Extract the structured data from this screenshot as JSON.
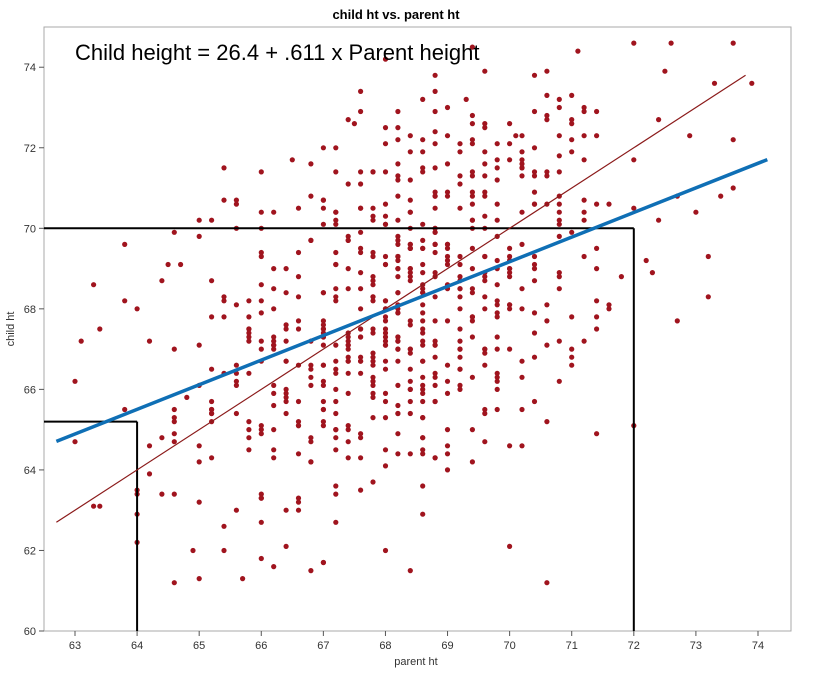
{
  "chart_data": {
    "type": "scatter",
    "title": "child ht vs. parent ht",
    "annotation": "Child height = 26.4 + .611 x Parent height",
    "xlabel": "parent ht",
    "ylabel": "child ht",
    "xlim": [
      62.5,
      74.5
    ],
    "ylim": [
      60,
      75
    ],
    "x_ticks": [
      63,
      64,
      65,
      66,
      67,
      68,
      69,
      70,
      71,
      72,
      73,
      74
    ],
    "y_ticks": [
      60,
      62,
      64,
      66,
      68,
      70,
      72,
      74
    ],
    "grid": false,
    "colors": {
      "points": "#a0141e",
      "fit_line": "#0f6fb5",
      "identity_line": "#8b1a1a",
      "guides": "#000000"
    },
    "fit_line": {
      "intercept": 26.4,
      "slope": 0.611,
      "x_range": [
        62.7,
        74.15
      ]
    },
    "identity_line": {
      "slope": 1.0,
      "intercept": 0.0,
      "x_range": [
        62.7,
        73.8
      ]
    },
    "guide_lines": [
      {
        "x": 64,
        "y": 65.2
      },
      {
        "x": 72,
        "y": 70.0
      }
    ],
    "point_count": 700,
    "series": [
      {
        "points": [
          [
            67.5,
            72.6
          ],
          [
            68.2,
            72.5
          ],
          [
            68.8,
            72.4
          ],
          [
            70.1,
            72.3
          ],
          [
            71.2,
            72.3
          ],
          [
            72.6,
            74.6
          ],
          [
            73.3,
            73.6
          ],
          [
            73.9,
            73.6
          ],
          [
            72.0,
            74.6
          ],
          [
            71.1,
            74.4
          ],
          [
            70.6,
            73.9
          ],
          [
            69.3,
            73.2
          ],
          [
            68.8,
            73.8
          ],
          [
            67.0,
            72.0
          ],
          [
            66.5,
            71.7
          ],
          [
            65.6,
            70.6
          ],
          [
            65.4,
            71.5
          ],
          [
            66.0,
            71.4
          ],
          [
            65.0,
            70.2
          ],
          [
            64.7,
            69.1
          ],
          [
            64.5,
            69.1
          ],
          [
            63.8,
            69.6
          ],
          [
            63.3,
            68.6
          ],
          [
            63.4,
            67.5
          ],
          [
            63.1,
            67.2
          ],
          [
            63.0,
            66.2
          ],
          [
            63.0,
            64.7
          ],
          [
            63.3,
            63.1
          ],
          [
            63.4,
            63.1
          ],
          [
            64.0,
            62.2
          ],
          [
            64.0,
            62.9
          ],
          [
            64.2,
            64.6
          ],
          [
            64.9,
            62.0
          ],
          [
            65.0,
            61.3
          ],
          [
            65.7,
            61.3
          ],
          [
            66.0,
            61.8
          ],
          [
            67.0,
            61.7
          ],
          [
            68.0,
            62.0
          ],
          [
            70.6,
            61.2
          ],
          [
            72.7,
            70.8
          ],
          [
            73.0,
            70.4
          ],
          [
            72.7,
            67.7
          ],
          [
            72.0,
            65.1
          ],
          [
            72.3,
            68.9
          ],
          [
            73.6,
            72.2
          ],
          [
            72.9,
            72.3
          ],
          [
            72.5,
            73.9
          ]
        ]
      }
    ]
  }
}
